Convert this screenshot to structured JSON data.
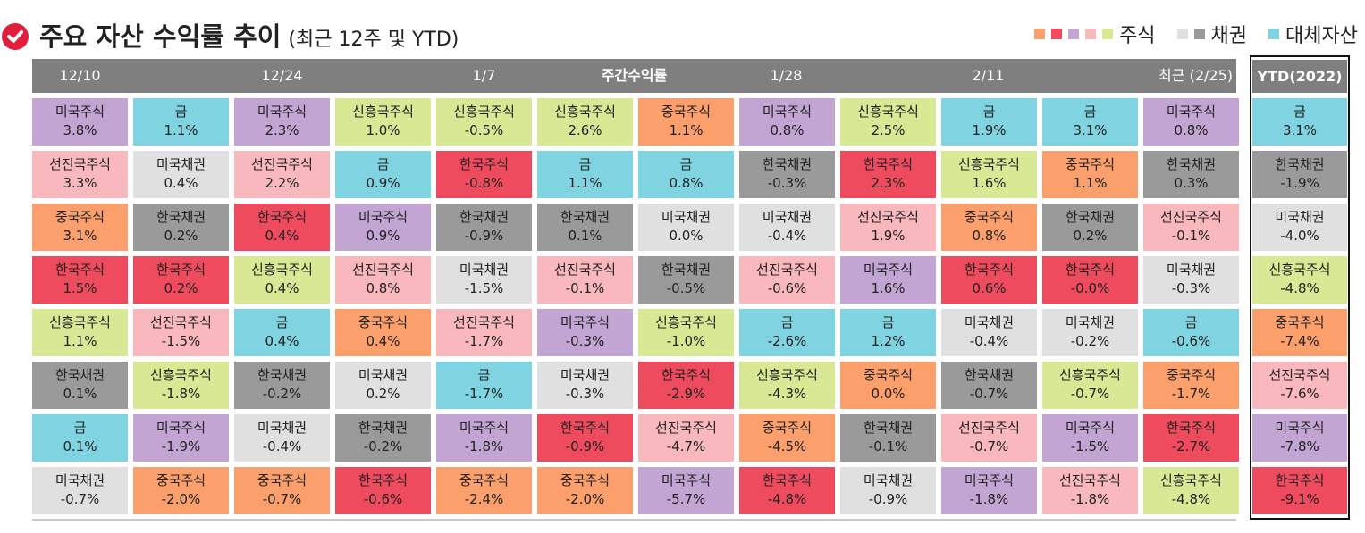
{
  "title": {
    "main": "주요 자산 수익률 추이",
    "sub": "(최근 12주 및 YTD)"
  },
  "legend": {
    "stocks_label": "주식",
    "bonds_label": "채권",
    "alt_label": "대체자산",
    "stock_colors": [
      "#fba06d",
      "#ef4b5e",
      "#c3a5d3",
      "#f8b8bd",
      "#d8e895"
    ],
    "bond_colors": [
      "#e0e0e0",
      "#9a9a9a"
    ],
    "alt_colors": [
      "#80d3e0"
    ]
  },
  "header": {
    "labels": [
      "12/10",
      "12/24",
      "1/7",
      "주간수익률",
      "1/28",
      "2/11",
      "최근 (2/25)"
    ],
    "ytd_label": "YTD(2022)"
  },
  "asset_colors": {
    "미국주식": "#c3a5d3",
    "선진국주식": "#f8b8bd",
    "중국주식": "#fba06d",
    "한국주식": "#ef4b5e",
    "신흥국주식": "#d8e895",
    "금": "#80d3e0",
    "미국채권": "#e0e0e0",
    "한국채권": "#9a9a9a"
  },
  "chart_data": {
    "type": "table",
    "rows": [
      [
        [
          "미국주식",
          "3.8%"
        ],
        [
          "금",
          "1.1%"
        ],
        [
          "미국주식",
          "2.3%"
        ],
        [
          "신흥국주식",
          "1.0%"
        ],
        [
          "신흥국주식",
          "-0.5%"
        ],
        [
          "신흥국주식",
          "2.6%"
        ],
        [
          "중국주식",
          "1.1%"
        ],
        [
          "미국주식",
          "0.8%"
        ],
        [
          "신흥국주식",
          "2.5%"
        ],
        [
          "금",
          "1.9%"
        ],
        [
          "금",
          "3.1%"
        ],
        [
          "미국주식",
          "0.8%"
        ],
        [
          "금",
          "3.1%"
        ]
      ],
      [
        [
          "선진국주식",
          "3.3%"
        ],
        [
          "미국채권",
          "0.4%"
        ],
        [
          "선진국주식",
          "2.2%"
        ],
        [
          "금",
          "0.9%"
        ],
        [
          "한국주식",
          "-0.8%"
        ],
        [
          "금",
          "1.1%"
        ],
        [
          "금",
          "0.8%"
        ],
        [
          "한국채권",
          "-0.3%"
        ],
        [
          "한국주식",
          "2.3%"
        ],
        [
          "신흥국주식",
          "1.6%"
        ],
        [
          "중국주식",
          "1.1%"
        ],
        [
          "한국채권",
          "0.3%"
        ],
        [
          "한국채권",
          "-1.9%"
        ]
      ],
      [
        [
          "중국주식",
          "3.1%"
        ],
        [
          "한국채권",
          "0.2%"
        ],
        [
          "한국주식",
          "0.4%"
        ],
        [
          "미국주식",
          "0.9%"
        ],
        [
          "한국채권",
          "-0.9%"
        ],
        [
          "한국채권",
          "0.1%"
        ],
        [
          "미국채권",
          "0.0%"
        ],
        [
          "미국채권",
          "-0.4%"
        ],
        [
          "선진국주식",
          "1.9%"
        ],
        [
          "중국주식",
          "0.8%"
        ],
        [
          "한국채권",
          "0.2%"
        ],
        [
          "선진국주식",
          "-0.1%"
        ],
        [
          "미국채권",
          "-4.0%"
        ]
      ],
      [
        [
          "한국주식",
          "1.5%"
        ],
        [
          "한국주식",
          "0.2%"
        ],
        [
          "신흥국주식",
          "0.4%"
        ],
        [
          "선진국주식",
          "0.8%"
        ],
        [
          "미국채권",
          "-1.5%"
        ],
        [
          "선진국주식",
          "-0.1%"
        ],
        [
          "한국채권",
          "-0.5%"
        ],
        [
          "선진국주식",
          "-0.6%"
        ],
        [
          "미국주식",
          "1.6%"
        ],
        [
          "한국주식",
          "0.6%"
        ],
        [
          "한국주식",
          "-0.0%"
        ],
        [
          "미국채권",
          "-0.3%"
        ],
        [
          "신흥국주식",
          "-4.8%"
        ]
      ],
      [
        [
          "신흥국주식",
          "1.1%"
        ],
        [
          "선진국주식",
          "-1.5%"
        ],
        [
          "금",
          "0.4%"
        ],
        [
          "중국주식",
          "0.4%"
        ],
        [
          "선진국주식",
          "-1.7%"
        ],
        [
          "미국주식",
          "-0.3%"
        ],
        [
          "신흥국주식",
          "-1.0%"
        ],
        [
          "금",
          "-2.6%"
        ],
        [
          "금",
          "1.2%"
        ],
        [
          "미국채권",
          "-0.4%"
        ],
        [
          "미국채권",
          "-0.2%"
        ],
        [
          "금",
          "-0.6%"
        ],
        [
          "중국주식",
          "-7.4%"
        ]
      ],
      [
        [
          "한국채권",
          "0.1%"
        ],
        [
          "신흥국주식",
          "-1.8%"
        ],
        [
          "한국채권",
          "-0.2%"
        ],
        [
          "미국채권",
          "0.2%"
        ],
        [
          "금",
          "-1.7%"
        ],
        [
          "미국채권",
          "-0.3%"
        ],
        [
          "한국주식",
          "-2.9%"
        ],
        [
          "신흥국주식",
          "-4.3%"
        ],
        [
          "중국주식",
          "0.0%"
        ],
        [
          "한국채권",
          "-0.7%"
        ],
        [
          "신흥국주식",
          "-0.7%"
        ],
        [
          "중국주식",
          "-1.7%"
        ],
        [
          "선진국주식",
          "-7.6%"
        ]
      ],
      [
        [
          "금",
          "0.1%"
        ],
        [
          "미국주식",
          "-1.9%"
        ],
        [
          "미국채권",
          "-0.4%"
        ],
        [
          "한국채권",
          "-0.2%"
        ],
        [
          "미국주식",
          "-1.8%"
        ],
        [
          "한국주식",
          "-0.9%"
        ],
        [
          "선진국주식",
          "-4.7%"
        ],
        [
          "중국주식",
          "-4.5%"
        ],
        [
          "한국채권",
          "-0.1%"
        ],
        [
          "선진국주식",
          "-0.7%"
        ],
        [
          "미국주식",
          "-1.5%"
        ],
        [
          "한국주식",
          "-2.7%"
        ],
        [
          "미국주식",
          "-7.8%"
        ]
      ],
      [
        [
          "미국채권",
          "-0.7%"
        ],
        [
          "중국주식",
          "-2.0%"
        ],
        [
          "중국주식",
          "-0.7%"
        ],
        [
          "한국주식",
          "-0.6%"
        ],
        [
          "중국주식",
          "-2.4%"
        ],
        [
          "중국주식",
          "-2.0%"
        ],
        [
          "미국주식",
          "-5.7%"
        ],
        [
          "한국주식",
          "-4.8%"
        ],
        [
          "미국채권",
          "-0.9%"
        ],
        [
          "미국주식",
          "-1.8%"
        ],
        [
          "선진국주식",
          "-1.8%"
        ],
        [
          "신흥국주식",
          "-4.8%"
        ],
        [
          "한국주식",
          "-9.1%"
        ]
      ]
    ]
  }
}
